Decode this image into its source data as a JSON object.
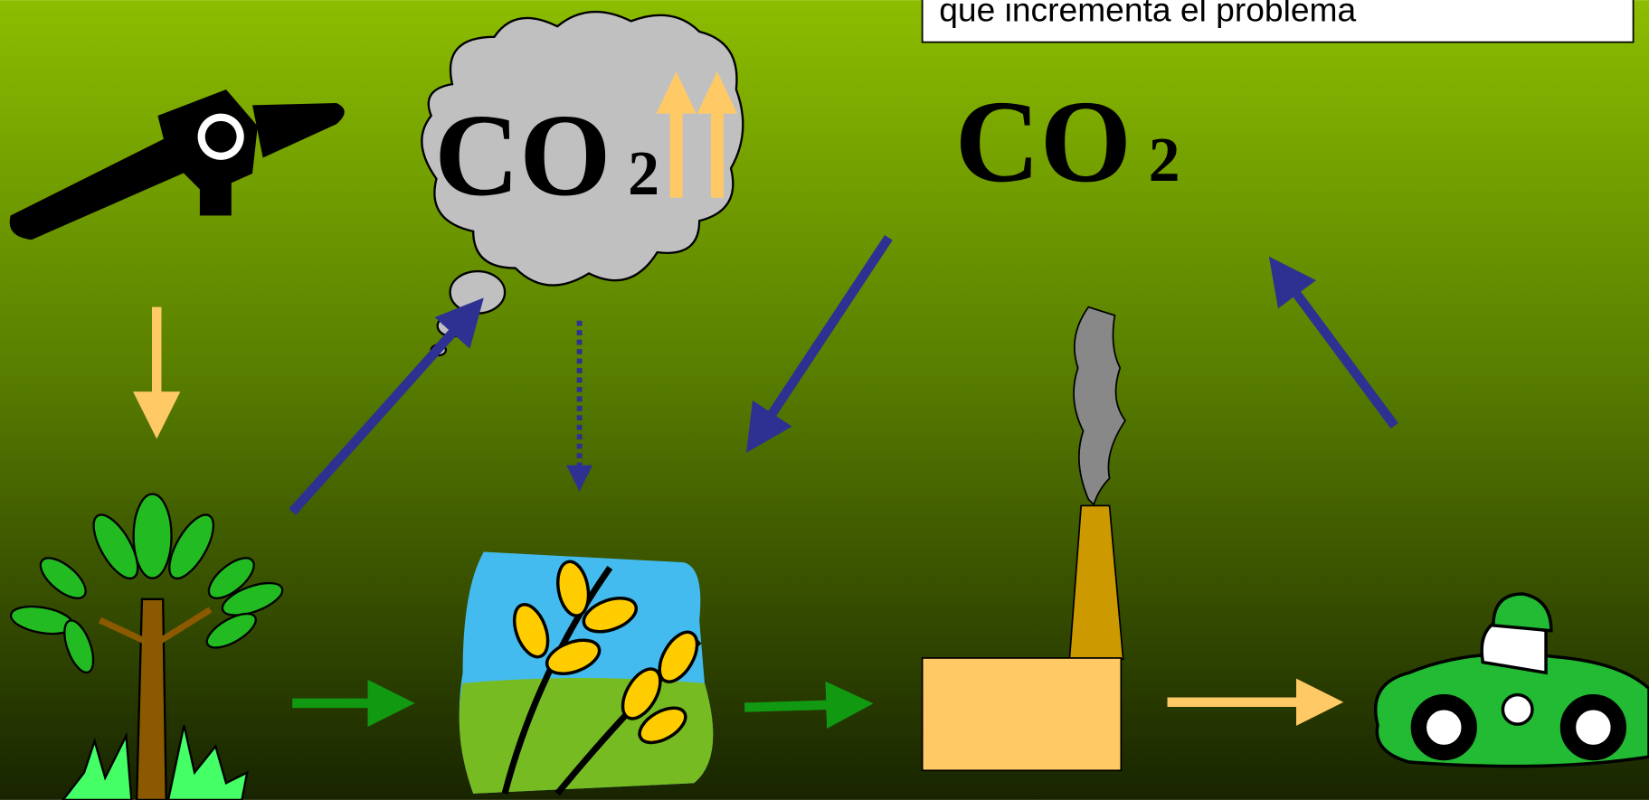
{
  "note_box": {
    "text": "que incrementa el problema"
  },
  "labels": [
    {
      "main": "CO",
      "sub": "2"
    },
    {
      "main": "CO",
      "sub": "2"
    }
  ]
}
